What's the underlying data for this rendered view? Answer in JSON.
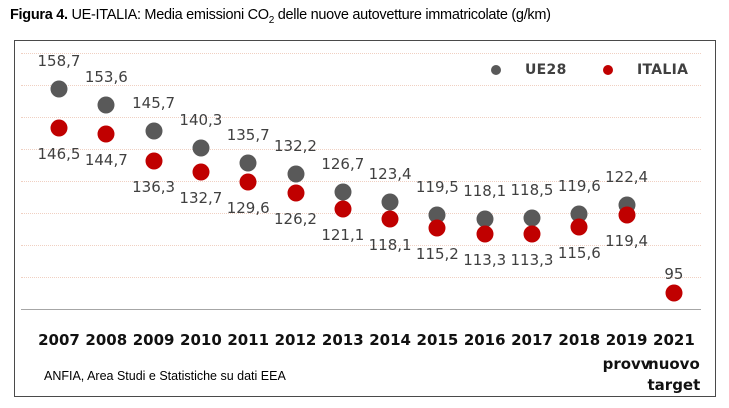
{
  "title": {
    "figure_label": "Figura 4.",
    "text_before_sub": " UE-ITALIA: Media emissioni CO",
    "subscript": "2",
    "text_after_sub": " delle nuove autovetture immatricolate  (g/km)"
  },
  "footer": "ANFIA, Area Studi e Statistiche su dati EEA",
  "colors": {
    "ue28": "#595959",
    "italia": "#c00000",
    "gridline": "#f0d0c2",
    "baseline": "#a6a6a6",
    "frame_border": "#4a4a4a",
    "value_label": "#404040",
    "axis_text": "#111111"
  },
  "chart_data": {
    "type": "scatter",
    "title": "UE-ITALIA: Media emissioni CO2 delle nuove autovetture immatricolate (g/km)",
    "categories": [
      "2007",
      "2008",
      "2009",
      "2010",
      "2011",
      "2012",
      "2013",
      "2014",
      "2015",
      "2016",
      "2017",
      "2018",
      "2019",
      "2021"
    ],
    "sublabels": [
      [],
      [],
      [],
      [],
      [],
      [],
      [],
      [],
      [],
      [],
      [],
      [],
      [
        "provv"
      ],
      [
        "nuovo",
        "target"
      ]
    ],
    "series": [
      {
        "name": "UE28",
        "color": "#595959",
        "values": [
          158.7,
          153.6,
          145.7,
          140.3,
          135.7,
          132.2,
          126.7,
          123.4,
          119.5,
          118.1,
          118.5,
          119.6,
          122.4,
          null
        ]
      },
      {
        "name": "ITALIA",
        "color": "#c00000",
        "values": [
          146.5,
          144.7,
          136.3,
          132.7,
          129.6,
          126.2,
          121.1,
          118.1,
          115.2,
          113.3,
          113.3,
          115.6,
          119.4,
          95
        ]
      }
    ],
    "ylim": [
      90,
      170
    ],
    "gridline_values": [
      100,
      110,
      120,
      130,
      140,
      150,
      160,
      170
    ],
    "grid": "horizontal-dotted",
    "legend_position": "top-right",
    "decimal_separator": ",",
    "xlabel": "",
    "ylabel": ""
  }
}
